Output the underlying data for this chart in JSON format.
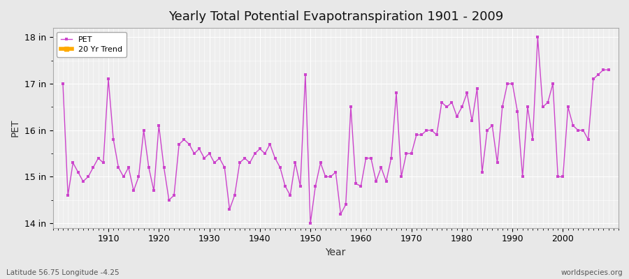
{
  "title": "Yearly Total Potential Evapotranspiration 1901 - 2009",
  "xlabel": "Year",
  "ylabel": "PET",
  "subtitle_left": "Latitude 56.75 Longitude -4.25",
  "subtitle_right": "worldspecies.org",
  "ylim": [
    13.9,
    18.2
  ],
  "xlim": [
    1899,
    2011
  ],
  "yticks": [
    14,
    15,
    16,
    17,
    18
  ],
  "ytick_labels": [
    "14 in",
    "15 in",
    "16 in",
    "17 in",
    "18 in"
  ],
  "xticks": [
    1910,
    1920,
    1930,
    1940,
    1950,
    1960,
    1970,
    1980,
    1990,
    2000
  ],
  "line_color": "#cc44cc",
  "trend_color": "#ffaa00",
  "bg_color": "#e8e8e8",
  "plot_bg_color": "#eeeeee",
  "grid_color": "#ffffff",
  "years": [
    1901,
    1902,
    1903,
    1904,
    1905,
    1906,
    1907,
    1908,
    1909,
    1910,
    1911,
    1912,
    1913,
    1914,
    1915,
    1916,
    1917,
    1918,
    1919,
    1920,
    1921,
    1922,
    1923,
    1924,
    1925,
    1926,
    1927,
    1928,
    1929,
    1930,
    1931,
    1932,
    1933,
    1934,
    1935,
    1936,
    1937,
    1938,
    1939,
    1940,
    1941,
    1942,
    1943,
    1944,
    1945,
    1946,
    1947,
    1948,
    1949,
    1950,
    1951,
    1952,
    1953,
    1954,
    1955,
    1956,
    1957,
    1958,
    1959,
    1960,
    1961,
    1962,
    1963,
    1964,
    1965,
    1966,
    1967,
    1968,
    1969,
    1970,
    1971,
    1972,
    1973,
    1974,
    1975,
    1976,
    1977,
    1978,
    1979,
    1980,
    1981,
    1982,
    1983,
    1984,
    1985,
    1986,
    1987,
    1988,
    1989,
    1990,
    1991,
    1992,
    1993,
    1994,
    1995,
    1996,
    1997,
    1998,
    1999,
    2000,
    2001,
    2002,
    2003,
    2004,
    2005,
    2006,
    2007,
    2008,
    2009
  ],
  "pet_values": [
    17.0,
    14.6,
    15.3,
    15.1,
    14.9,
    15.0,
    15.2,
    15.4,
    15.3,
    17.1,
    15.8,
    15.2,
    15.0,
    15.2,
    14.7,
    15.0,
    16.0,
    15.2,
    14.7,
    16.1,
    15.2,
    14.5,
    14.6,
    15.7,
    15.8,
    15.7,
    15.5,
    15.6,
    15.4,
    15.5,
    15.3,
    15.4,
    15.2,
    14.3,
    14.6,
    15.3,
    15.4,
    15.3,
    15.5,
    15.6,
    15.5,
    15.7,
    15.4,
    15.2,
    14.8,
    14.6,
    15.3,
    14.8,
    17.2,
    14.0,
    14.8,
    15.3,
    15.0,
    15.0,
    15.1,
    14.2,
    14.4,
    16.5,
    14.85,
    14.8,
    15.4,
    15.4,
    14.9,
    15.2,
    14.9,
    15.4,
    16.8,
    15.0,
    15.5,
    15.5,
    15.9,
    15.9,
    16.0,
    16.0,
    15.9,
    16.6,
    16.5,
    16.6,
    16.3,
    16.5,
    16.8,
    16.2,
    16.9,
    15.1,
    16.0,
    16.1,
    15.3,
    16.5,
    17.0,
    17.0,
    16.4,
    15.0,
    16.5,
    15.8,
    18.0,
    16.5,
    16.6,
    17.0,
    15.0,
    15.0,
    16.5,
    16.1,
    16.0,
    16.0,
    15.8,
    17.1,
    17.2,
    17.3,
    17.3
  ]
}
